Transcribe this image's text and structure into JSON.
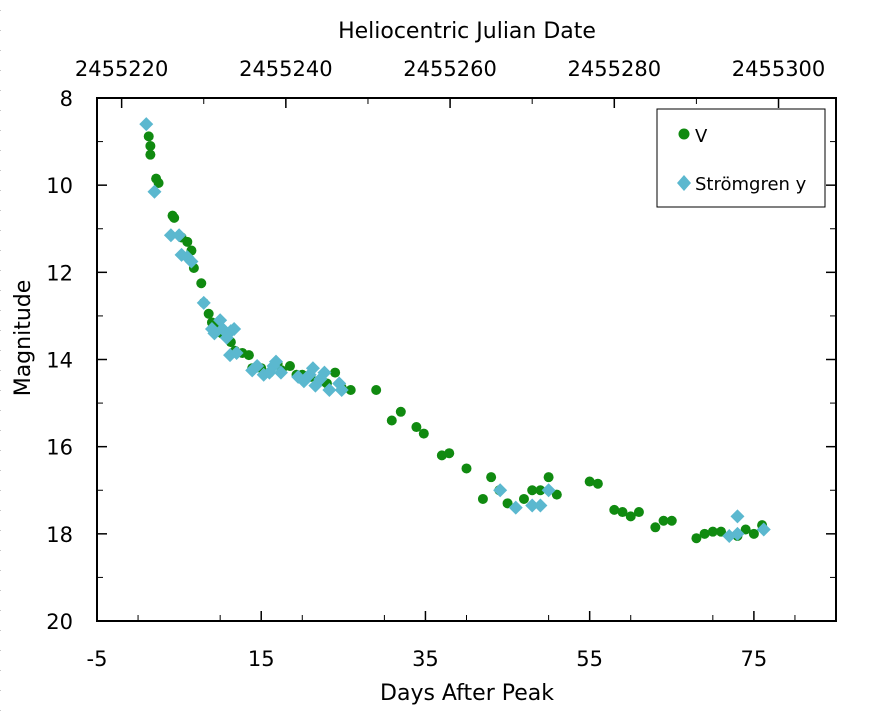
{
  "chart_data": {
    "type": "scatter",
    "top_axis_title": "Heliocentric Julian Date",
    "top_ticks": [
      "2455220",
      "2455240",
      "2455260",
      "2455280",
      "2455300"
    ],
    "top_tick_values": [
      -2,
      18,
      38,
      58,
      78
    ],
    "xlabel": "Days After Peak",
    "ylabel": "Magnitude",
    "x_ticks": [
      "-5",
      "15",
      "35",
      "55",
      "75"
    ],
    "x_tick_values": [
      -5,
      15,
      35,
      55,
      75
    ],
    "y_ticks": [
      "8",
      "10",
      "12",
      "14",
      "16",
      "18",
      "20"
    ],
    "y_tick_values": [
      8,
      10,
      12,
      14,
      16,
      18,
      20
    ],
    "xlim": [
      -5,
      85
    ],
    "ylim": [
      20,
      8
    ],
    "y_inverted": true,
    "legend_position": "top-right",
    "series": [
      {
        "name": "V",
        "color": "#108a10",
        "marker": "circle",
        "points": [
          [
            1.3,
            8.88
          ],
          [
            1.5,
            9.1
          ],
          [
            1.5,
            9.3
          ],
          [
            2.2,
            9.85
          ],
          [
            2.5,
            9.95
          ],
          [
            4.2,
            10.7
          ],
          [
            4.4,
            10.75
          ],
          [
            5.3,
            11.2
          ],
          [
            6.0,
            11.3
          ],
          [
            6.5,
            11.5
          ],
          [
            6.8,
            11.9
          ],
          [
            7.7,
            12.25
          ],
          [
            8.0,
            12.7
          ],
          [
            8.6,
            12.95
          ],
          [
            9.0,
            13.15
          ],
          [
            9.3,
            13.2
          ],
          [
            10.2,
            13.4
          ],
          [
            11.3,
            13.6
          ],
          [
            11.8,
            13.8
          ],
          [
            12.7,
            13.85
          ],
          [
            13.5,
            13.9
          ],
          [
            13.9,
            14.2
          ],
          [
            15.0,
            14.2
          ],
          [
            16.0,
            14.3
          ],
          [
            17.0,
            14.1
          ],
          [
            17.5,
            14.25
          ],
          [
            18.5,
            14.15
          ],
          [
            19.3,
            14.35
          ],
          [
            20.0,
            14.35
          ],
          [
            21.0,
            14.4
          ],
          [
            22.5,
            14.5
          ],
          [
            23.0,
            14.55
          ],
          [
            24.0,
            14.3
          ],
          [
            24.8,
            14.65
          ],
          [
            25.9,
            14.7
          ],
          [
            29.0,
            14.7
          ],
          [
            30.9,
            15.4
          ],
          [
            32.0,
            15.2
          ],
          [
            33.9,
            15.55
          ],
          [
            34.8,
            15.7
          ],
          [
            37.0,
            16.2
          ],
          [
            37.9,
            16.15
          ],
          [
            40.0,
            16.5
          ],
          [
            42.0,
            17.2
          ],
          [
            43.0,
            16.7
          ],
          [
            44.0,
            17.0
          ],
          [
            45.0,
            17.3
          ],
          [
            47.0,
            17.2
          ],
          [
            48.0,
            17.0
          ],
          [
            49.0,
            17.0
          ],
          [
            50.0,
            16.7
          ],
          [
            51.0,
            17.1
          ],
          [
            55.0,
            16.8
          ],
          [
            56.0,
            16.85
          ],
          [
            58.0,
            17.45
          ],
          [
            59.0,
            17.5
          ],
          [
            60.0,
            17.6
          ],
          [
            61.0,
            17.5
          ],
          [
            63.0,
            17.85
          ],
          [
            64.0,
            17.7
          ],
          [
            65.0,
            17.7
          ],
          [
            68.0,
            18.1
          ],
          [
            69.0,
            18.0
          ],
          [
            70.0,
            17.95
          ],
          [
            71.0,
            17.95
          ],
          [
            73.0,
            18.05
          ],
          [
            74.0,
            17.9
          ],
          [
            75.0,
            18.0
          ],
          [
            76.0,
            17.8
          ]
        ]
      },
      {
        "name": "Strömgren y",
        "color": "#5bb8cf",
        "marker": "diamond",
        "points": [
          [
            1.0,
            8.6
          ],
          [
            2.0,
            10.15
          ],
          [
            4.0,
            11.15
          ],
          [
            5.0,
            11.15
          ],
          [
            5.3,
            11.6
          ],
          [
            6.0,
            11.65
          ],
          [
            6.5,
            11.75
          ],
          [
            8.0,
            12.7
          ],
          [
            9.0,
            13.3
          ],
          [
            9.3,
            13.4
          ],
          [
            10.0,
            13.1
          ],
          [
            10.3,
            13.3
          ],
          [
            10.8,
            13.5
          ],
          [
            11.3,
            13.35
          ],
          [
            11.7,
            13.3
          ],
          [
            11.2,
            13.9
          ],
          [
            12.0,
            13.85
          ],
          [
            13.9,
            14.25
          ],
          [
            14.5,
            14.15
          ],
          [
            15.3,
            14.35
          ],
          [
            16.0,
            14.3
          ],
          [
            16.5,
            14.15
          ],
          [
            16.8,
            14.05
          ],
          [
            17.4,
            14.3
          ],
          [
            19.5,
            14.4
          ],
          [
            20.2,
            14.5
          ],
          [
            20.9,
            14.35
          ],
          [
            21.3,
            14.2
          ],
          [
            21.6,
            14.6
          ],
          [
            22.2,
            14.45
          ],
          [
            22.7,
            14.3
          ],
          [
            23.3,
            14.7
          ],
          [
            24.5,
            14.55
          ],
          [
            24.8,
            14.7
          ],
          [
            44.1,
            17.0
          ],
          [
            46.0,
            17.4
          ],
          [
            48.0,
            17.35
          ],
          [
            49.0,
            17.35
          ],
          [
            50.0,
            17.0
          ],
          [
            72.0,
            18.05
          ],
          [
            73.0,
            17.6
          ],
          [
            73.0,
            18.0
          ],
          [
            76.2,
            17.9
          ]
        ]
      }
    ]
  }
}
